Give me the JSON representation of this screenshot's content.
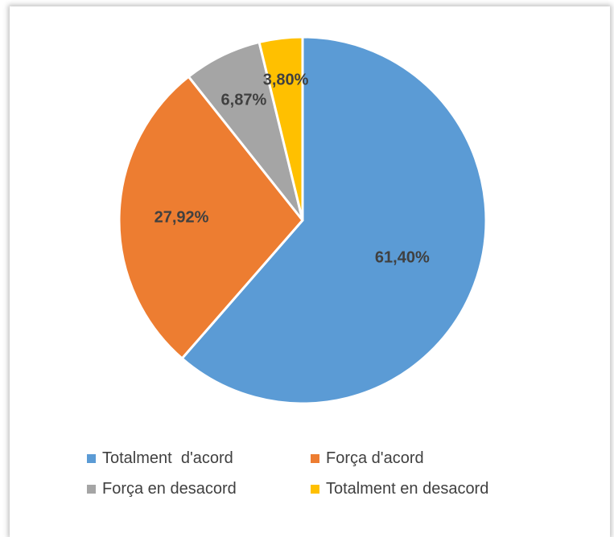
{
  "chart_data": {
    "type": "pie",
    "title": "",
    "categories": [
      "Totalment  d'acord",
      "Força d'acord",
      "Força en desacord",
      "Totalment en desacord"
    ],
    "values": [
      61.4,
      27.92,
      6.87,
      3.8
    ],
    "labels": [
      "61,40%",
      "27,92%",
      "6,87%",
      "3,80%"
    ],
    "colors": [
      "#5b9bd5",
      "#ed7d31",
      "#a5a5a5",
      "#ffc000"
    ],
    "legend": "bottom"
  }
}
